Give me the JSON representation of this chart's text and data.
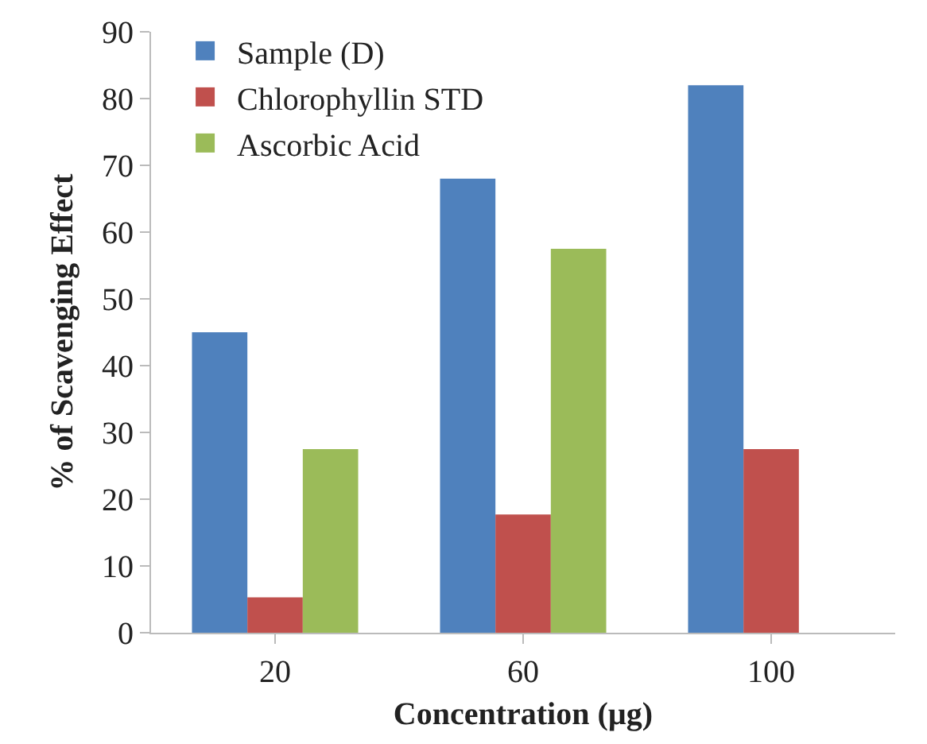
{
  "chart_data": {
    "type": "bar",
    "xlabel": "Concentration (µg)",
    "ylabel": "% of Scavenging Effect",
    "categories": [
      "20",
      "60",
      "100"
    ],
    "series": [
      {
        "name": "Sample (D)",
        "color": "#4f81bd",
        "values": [
          45,
          68,
          82
        ]
      },
      {
        "name": "Chlorophyllin STD",
        "color": "#c0504d",
        "values": [
          5.3,
          17.7,
          27.5
        ]
      },
      {
        "name": "Ascorbic Acid",
        "color": "#9bbb59",
        "values": [
          27.5,
          57.5,
          null
        ]
      }
    ],
    "ylim": [
      0,
      90
    ],
    "yticks": [
      0,
      10,
      20,
      30,
      40,
      50,
      60,
      70,
      80,
      90
    ],
    "grid": false,
    "legend": "top left"
  }
}
